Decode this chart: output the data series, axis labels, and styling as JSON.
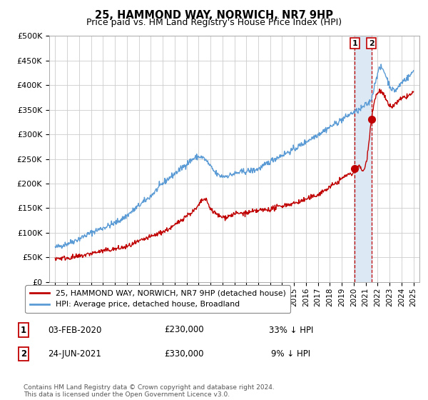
{
  "title": "25, HAMMOND WAY, NORWICH, NR7 9HP",
  "subtitle": "Price paid vs. HM Land Registry's House Price Index (HPI)",
  "legend_line1": "25, HAMMOND WAY, NORWICH, NR7 9HP (detached house)",
  "legend_line2": "HPI: Average price, detached house, Broadland",
  "annotation_footer": "Contains HM Land Registry data © Crown copyright and database right 2024.\nThis data is licensed under the Open Government Licence v3.0.",
  "table_rows": [
    {
      "num": "1",
      "date": "03-FEB-2020",
      "price": "£230,000",
      "pct": "33% ↓ HPI"
    },
    {
      "num": "2",
      "date": "24-JUN-2021",
      "price": "£330,000",
      "pct": "9% ↓ HPI"
    }
  ],
  "sale1_x": 2020.09,
  "sale1_y": 230000,
  "sale2_x": 2021.48,
  "sale2_y": 330000,
  "hpi_color": "#5b9bd5",
  "sale_color": "#c00000",
  "vline_color": "#c00000",
  "highlight_color": "#dce9f5",
  "ylim": [
    0,
    500000
  ],
  "yticks": [
    0,
    50000,
    100000,
    150000,
    200000,
    250000,
    300000,
    350000,
    400000,
    450000,
    500000
  ],
  "xlim_start": 1994.5,
  "xlim_end": 2025.5,
  "xtick_years": [
    1995,
    1996,
    1997,
    1998,
    1999,
    2000,
    2001,
    2002,
    2003,
    2004,
    2005,
    2006,
    2007,
    2008,
    2009,
    2010,
    2011,
    2012,
    2013,
    2014,
    2015,
    2016,
    2017,
    2018,
    2019,
    2020,
    2021,
    2022,
    2023,
    2024,
    2025
  ]
}
